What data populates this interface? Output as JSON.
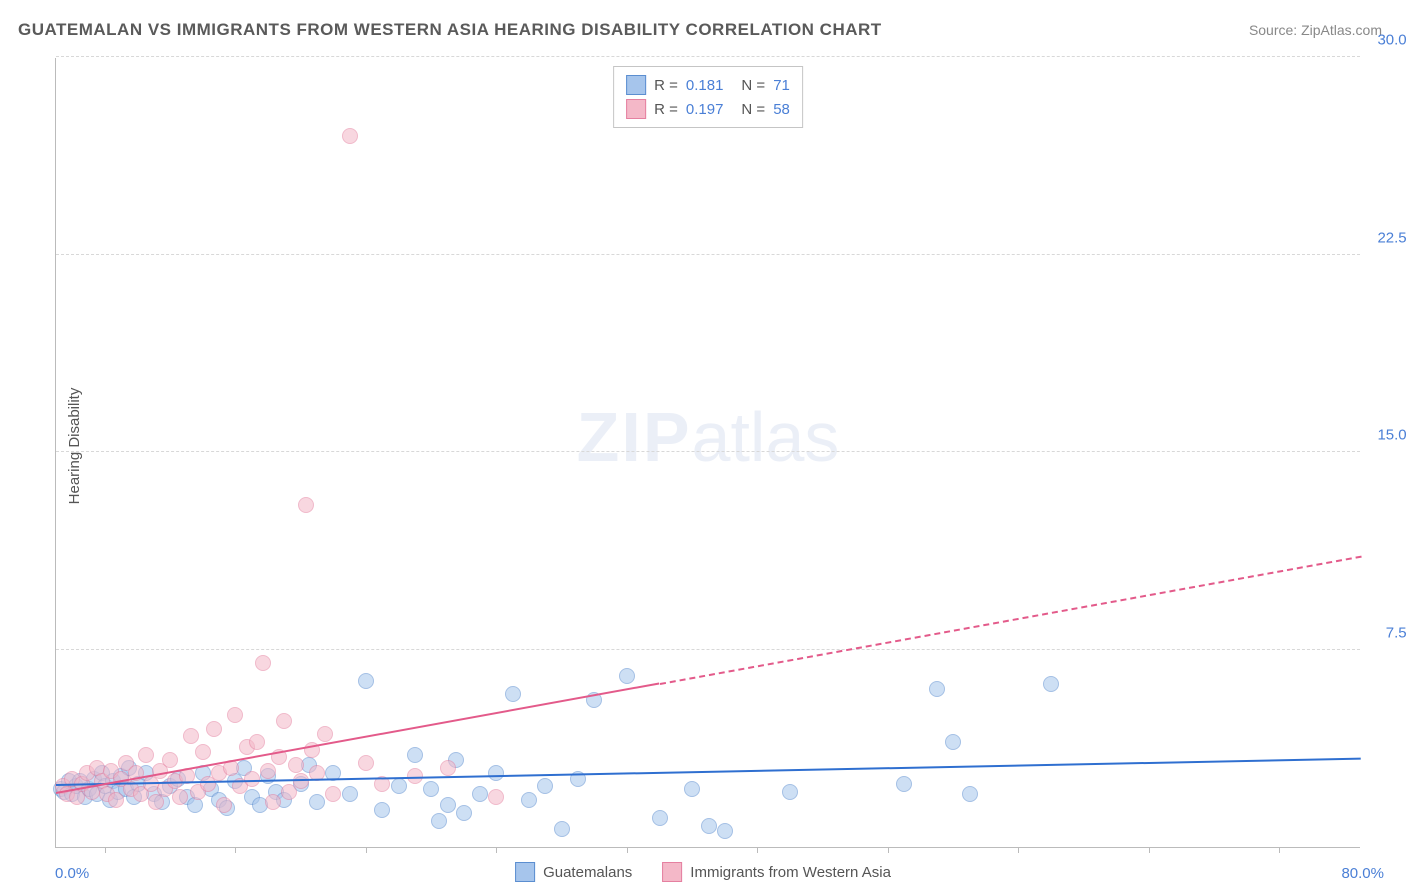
{
  "title": "GUATEMALAN VS IMMIGRANTS FROM WESTERN ASIA HEARING DISABILITY CORRELATION CHART",
  "source_label": "Source: ZipAtlas.com",
  "ylabel": "Hearing Disability",
  "watermark_zip": "ZIP",
  "watermark_atlas": "atlas",
  "chart": {
    "type": "scatter",
    "xlim": [
      0,
      80
    ],
    "ylim": [
      0,
      30
    ],
    "xaxis_min_label": "0.0%",
    "xaxis_max_label": "80.0%",
    "yticks": [
      7.5,
      15.0,
      22.5,
      30.0
    ],
    "ytick_labels": [
      "7.5%",
      "15.0%",
      "22.5%",
      "30.0%"
    ],
    "xtick_positions": [
      3,
      11,
      19,
      27,
      35,
      43,
      51,
      59,
      67,
      75
    ],
    "plot_bg": "#ffffff",
    "grid_color": "#d8d8d8",
    "axis_color": "#bbbbbb",
    "marker_radius": 8,
    "marker_opacity": 0.55,
    "series": [
      {
        "name": "Guatemalans",
        "color_fill": "#a6c5ec",
        "color_stroke": "#5b8ed0",
        "r_value": "0.181",
        "n_value": "71",
        "trend_line_color": "#2f6fd0",
        "trend_start": [
          0,
          2.3
        ],
        "trend_end": [
          80,
          3.3
        ],
        "trend_dash_start": 80,
        "points": [
          [
            0.3,
            2.2
          ],
          [
            0.5,
            2.1
          ],
          [
            0.8,
            2.5
          ],
          [
            1.0,
            2.0
          ],
          [
            1.2,
            2.3
          ],
          [
            1.5,
            2.5
          ],
          [
            1.8,
            1.9
          ],
          [
            2.0,
            2.2
          ],
          [
            2.3,
            2.6
          ],
          [
            2.5,
            2.0
          ],
          [
            2.8,
            2.8
          ],
          [
            3.0,
            2.3
          ],
          [
            3.3,
            1.8
          ],
          [
            3.5,
            2.5
          ],
          [
            3.8,
            2.1
          ],
          [
            4.0,
            2.7
          ],
          [
            4.3,
            2.2
          ],
          [
            4.5,
            3.0
          ],
          [
            4.8,
            1.9
          ],
          [
            5.0,
            2.4
          ],
          [
            5.5,
            2.8
          ],
          [
            6.0,
            2.0
          ],
          [
            6.5,
            1.7
          ],
          [
            7.0,
            2.3
          ],
          [
            7.5,
            2.6
          ],
          [
            8.0,
            1.9
          ],
          [
            8.5,
            1.6
          ],
          [
            9.0,
            2.8
          ],
          [
            9.5,
            2.2
          ],
          [
            10.0,
            1.8
          ],
          [
            10.5,
            1.5
          ],
          [
            11.0,
            2.5
          ],
          [
            11.5,
            3.0
          ],
          [
            12.0,
            1.9
          ],
          [
            12.5,
            1.6
          ],
          [
            13.0,
            2.7
          ],
          [
            13.5,
            2.1
          ],
          [
            14.0,
            1.8
          ],
          [
            15.0,
            2.4
          ],
          [
            15.5,
            3.1
          ],
          [
            16.0,
            1.7
          ],
          [
            17.0,
            2.8
          ],
          [
            18.0,
            2.0
          ],
          [
            19.0,
            6.3
          ],
          [
            20.0,
            1.4
          ],
          [
            21.0,
            2.3
          ],
          [
            22.0,
            3.5
          ],
          [
            23.0,
            2.2
          ],
          [
            23.5,
            1.0
          ],
          [
            24.0,
            1.6
          ],
          [
            24.5,
            3.3
          ],
          [
            25.0,
            1.3
          ],
          [
            26.0,
            2.0
          ],
          [
            27.0,
            2.8
          ],
          [
            28.0,
            5.8
          ],
          [
            29.0,
            1.8
          ],
          [
            30.0,
            2.3
          ],
          [
            31.0,
            0.7
          ],
          [
            32.0,
            2.6
          ],
          [
            33.0,
            5.6
          ],
          [
            35.0,
            6.5
          ],
          [
            37.0,
            1.1
          ],
          [
            39.0,
            2.2
          ],
          [
            40.0,
            0.8
          ],
          [
            41.0,
            0.6
          ],
          [
            45.0,
            2.1
          ],
          [
            52.0,
            2.4
          ],
          [
            54.0,
            6.0
          ],
          [
            55.0,
            4.0
          ],
          [
            56.0,
            2.0
          ],
          [
            61.0,
            6.2
          ]
        ]
      },
      {
        "name": "Immigrants from Western Asia",
        "color_fill": "#f4b8c8",
        "color_stroke": "#e580a0",
        "r_value": "0.197",
        "n_value": "58",
        "trend_line_color": "#e35a8a",
        "trend_start": [
          0,
          2.0
        ],
        "trend_end": [
          80,
          11.0
        ],
        "trend_dash_start": 37,
        "points": [
          [
            0.4,
            2.3
          ],
          [
            0.7,
            2.0
          ],
          [
            1.0,
            2.6
          ],
          [
            1.3,
            1.9
          ],
          [
            1.6,
            2.4
          ],
          [
            1.9,
            2.8
          ],
          [
            2.2,
            2.1
          ],
          [
            2.5,
            3.0
          ],
          [
            2.8,
            2.5
          ],
          [
            3.1,
            2.0
          ],
          [
            3.4,
            2.9
          ],
          [
            3.7,
            1.8
          ],
          [
            4.0,
            2.6
          ],
          [
            4.3,
            3.2
          ],
          [
            4.6,
            2.2
          ],
          [
            4.9,
            2.8
          ],
          [
            5.2,
            2.0
          ],
          [
            5.5,
            3.5
          ],
          [
            5.8,
            2.4
          ],
          [
            6.1,
            1.7
          ],
          [
            6.4,
            2.9
          ],
          [
            6.7,
            2.2
          ],
          [
            7.0,
            3.3
          ],
          [
            7.3,
            2.5
          ],
          [
            7.6,
            1.9
          ],
          [
            8.0,
            2.7
          ],
          [
            8.3,
            4.2
          ],
          [
            8.7,
            2.1
          ],
          [
            9.0,
            3.6
          ],
          [
            9.3,
            2.4
          ],
          [
            9.7,
            4.5
          ],
          [
            10.0,
            2.8
          ],
          [
            10.3,
            1.6
          ],
          [
            10.7,
            3.0
          ],
          [
            11.0,
            5.0
          ],
          [
            11.3,
            2.3
          ],
          [
            11.7,
            3.8
          ],
          [
            12.0,
            2.6
          ],
          [
            12.3,
            4.0
          ],
          [
            12.7,
            7.0
          ],
          [
            13.0,
            2.9
          ],
          [
            13.3,
            1.7
          ],
          [
            13.7,
            3.4
          ],
          [
            14.0,
            4.8
          ],
          [
            14.3,
            2.1
          ],
          [
            14.7,
            3.1
          ],
          [
            15.0,
            2.5
          ],
          [
            15.3,
            13.0
          ],
          [
            15.7,
            3.7
          ],
          [
            16.0,
            2.8
          ],
          [
            16.5,
            4.3
          ],
          [
            17.0,
            2.0
          ],
          [
            18.0,
            27.0
          ],
          [
            19.0,
            3.2
          ],
          [
            20.0,
            2.4
          ],
          [
            22.0,
            2.7
          ],
          [
            24.0,
            3.0
          ],
          [
            27.0,
            1.9
          ]
        ]
      }
    ]
  },
  "legend_bottom": {
    "items": [
      "Guatemalans",
      "Immigrants from Western Asia"
    ]
  }
}
